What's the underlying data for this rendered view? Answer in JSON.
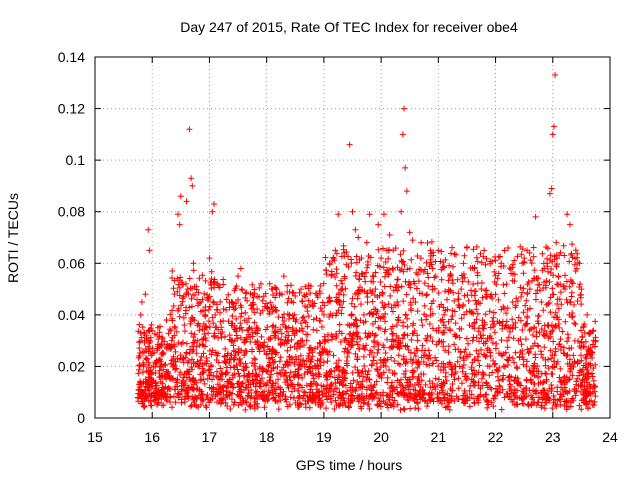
{
  "chart_data": {
    "type": "scatter",
    "title": "Day 247 of 2015, Rate Of TEC Index for receiver obe4",
    "xlabel": "GPS time / hours",
    "ylabel": "ROTI / TECUs",
    "xlim": [
      15,
      24
    ],
    "ylim": [
      0,
      0.14
    ],
    "xticks": [
      15,
      16,
      17,
      18,
      19,
      20,
      21,
      22,
      23,
      24
    ],
    "yticks": [
      0,
      0.02,
      0.04,
      0.06,
      0.08,
      0.1,
      0.12,
      0.14
    ],
    "xtick_labels": [
      "15",
      "16",
      "17",
      "18",
      "19",
      "20",
      "21",
      "22",
      "23",
      "24"
    ],
    "ytick_labels": [
      "0",
      "0.02",
      "0.04",
      "0.06",
      "0.08",
      "0.1",
      "0.12",
      "0.14"
    ],
    "grid": true,
    "marker": "+",
    "marker_color": "#ff0000",
    "x_range_of_data": [
      15.75,
      23.75
    ],
    "series": [
      {
        "values_note": "",
        "points": [
          [
            15.75,
            0.008
          ],
          [
            15.78,
            0.012
          ],
          [
            15.8,
            0.04
          ],
          [
            15.82,
            0.045
          ],
          [
            15.85,
            0.02
          ],
          [
            15.88,
            0.048
          ],
          [
            15.9,
            0.03
          ],
          [
            15.93,
            0.073
          ],
          [
            15.95,
            0.065
          ],
          [
            15.97,
            0.015
          ],
          [
            16.0,
            0.025
          ],
          [
            16.05,
            0.01
          ],
          [
            16.1,
            0.035
          ],
          [
            16.15,
            0.022
          ],
          [
            16.2,
            0.005
          ],
          [
            16.25,
            0.038
          ],
          [
            16.3,
            0.028
          ],
          [
            16.35,
            0.057
          ],
          [
            16.4,
            0.012
          ],
          [
            16.45,
            0.079
          ],
          [
            16.48,
            0.075
          ],
          [
            16.5,
            0.086
          ],
          [
            16.55,
            0.047
          ],
          [
            16.6,
            0.084
          ],
          [
            16.62,
            0.05
          ],
          [
            16.65,
            0.112
          ],
          [
            16.68,
            0.093
          ],
          [
            16.7,
            0.09
          ],
          [
            16.72,
            0.06
          ],
          [
            16.75,
            0.03
          ],
          [
            16.8,
            0.02
          ],
          [
            16.85,
            0.045
          ],
          [
            16.9,
            0.015
          ],
          [
            16.95,
            0.035
          ],
          [
            17.0,
            0.062
          ],
          [
            17.05,
            0.08
          ],
          [
            17.08,
            0.083
          ],
          [
            17.1,
            0.04
          ],
          [
            17.15,
            0.025
          ],
          [
            17.2,
            0.01
          ],
          [
            17.3,
            0.046
          ],
          [
            17.4,
            0.03
          ],
          [
            17.5,
            0.055
          ],
          [
            17.55,
            0.058
          ],
          [
            17.6,
            0.02
          ],
          [
            17.7,
            0.035
          ],
          [
            17.8,
            0.015
          ],
          [
            17.9,
            0.052
          ],
          [
            18.0,
            0.025
          ],
          [
            18.1,
            0.05
          ],
          [
            18.2,
            0.012
          ],
          [
            18.3,
            0.055
          ],
          [
            18.4,
            0.04
          ],
          [
            18.5,
            0.018
          ],
          [
            18.6,
            0.05
          ],
          [
            18.7,
            0.03
          ],
          [
            18.8,
            0.045
          ],
          [
            18.9,
            0.02
          ],
          [
            19.0,
            0.04
          ],
          [
            19.1,
            0.06
          ],
          [
            19.2,
            0.065
          ],
          [
            19.25,
            0.079
          ],
          [
            19.3,
            0.05
          ],
          [
            19.4,
            0.03
          ],
          [
            19.45,
            0.106
          ],
          [
            19.5,
            0.08
          ],
          [
            19.55,
            0.073
          ],
          [
            19.6,
            0.07
          ],
          [
            19.7,
            0.04
          ],
          [
            19.75,
            0.068
          ],
          [
            19.8,
            0.079
          ],
          [
            19.9,
            0.05
          ],
          [
            19.95,
            0.075
          ],
          [
            20.0,
            0.062
          ],
          [
            20.05,
            0.079
          ],
          [
            20.1,
            0.065
          ],
          [
            20.15,
            0.071
          ],
          [
            20.2,
            0.058
          ],
          [
            20.3,
            0.03
          ],
          [
            20.35,
            0.08
          ],
          [
            20.38,
            0.11
          ],
          [
            20.4,
            0.12
          ],
          [
            20.42,
            0.097
          ],
          [
            20.45,
            0.088
          ],
          [
            20.5,
            0.072
          ],
          [
            20.55,
            0.069
          ],
          [
            20.6,
            0.045
          ],
          [
            20.7,
            0.068
          ],
          [
            20.8,
            0.03
          ],
          [
            20.9,
            0.058
          ],
          [
            21.0,
            0.065
          ],
          [
            21.1,
            0.04
          ],
          [
            21.2,
            0.055
          ],
          [
            21.3,
            0.02
          ],
          [
            21.4,
            0.05
          ],
          [
            21.5,
            0.066
          ],
          [
            21.6,
            0.03
          ],
          [
            21.7,
            0.045
          ],
          [
            21.8,
            0.065
          ],
          [
            21.9,
            0.02
          ],
          [
            22.0,
            0.048
          ],
          [
            22.1,
            0.06
          ],
          [
            22.2,
            0.035
          ],
          [
            22.3,
            0.045
          ],
          [
            22.4,
            0.03
          ],
          [
            22.5,
            0.062
          ],
          [
            22.55,
            0.065
          ],
          [
            22.6,
            0.05
          ],
          [
            22.7,
            0.078
          ],
          [
            22.8,
            0.045
          ],
          [
            22.85,
            0.058
          ],
          [
            22.9,
            0.06
          ],
          [
            22.95,
            0.087
          ],
          [
            22.98,
            0.089
          ],
          [
            23.0,
            0.11
          ],
          [
            23.02,
            0.113
          ],
          [
            23.04,
            0.133
          ],
          [
            23.06,
            0.068
          ],
          [
            23.1,
            0.055
          ],
          [
            23.2,
            0.063
          ],
          [
            23.25,
            0.079
          ],
          [
            23.3,
            0.075
          ],
          [
            23.4,
            0.057
          ],
          [
            23.5,
            0.05
          ],
          [
            23.6,
            0.04
          ],
          [
            23.65,
            0.025
          ],
          [
            23.7,
            0.01
          ],
          [
            23.72,
            0.005
          ],
          [
            23.75,
            0.03
          ]
        ]
      }
    ]
  }
}
